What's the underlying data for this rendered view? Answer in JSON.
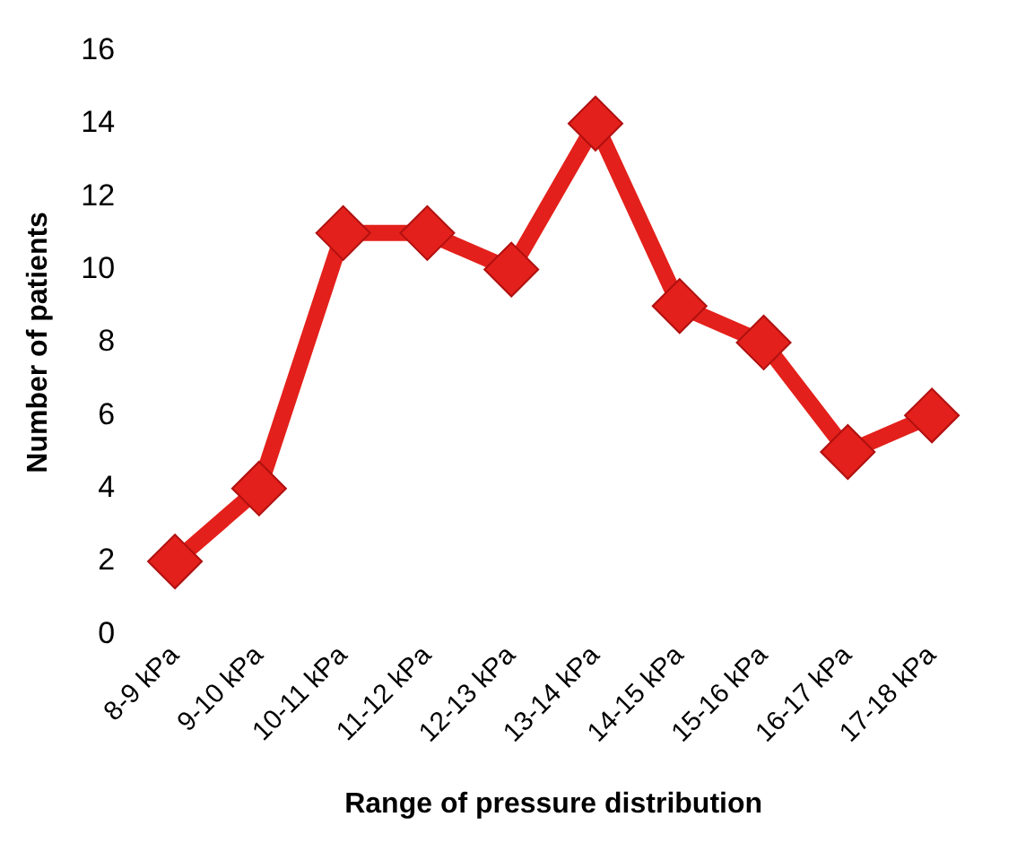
{
  "chart_data": {
    "type": "line",
    "xlabel": "Range of pressure distribution",
    "ylabel": "Number of patients",
    "categories": [
      "8-9 kPa",
      "9-10 kPa",
      "10-11 kPa",
      "11-12 kPa",
      "12-13 kPa",
      "13-14 kPa",
      "14-15 kPa",
      "15-16 kPa",
      "16-17 kPa",
      "17-18 kPa"
    ],
    "series": [
      {
        "color": "#e3201b",
        "values": [
          2,
          4,
          11,
          11,
          10,
          14,
          9,
          8,
          5,
          6
        ]
      }
    ],
    "ylim": [
      0,
      16
    ],
    "yticks": [
      0,
      2,
      4,
      6,
      8,
      10,
      12,
      14,
      16
    ],
    "grid": false,
    "legend": false,
    "marker": "diamond",
    "line_style": "solid"
  }
}
